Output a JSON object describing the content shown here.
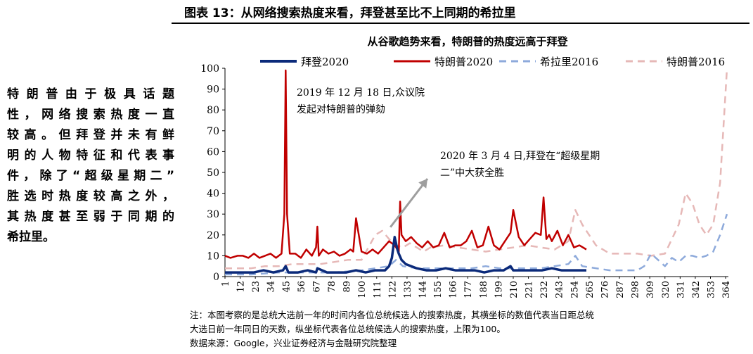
{
  "header": {
    "title": "图表 13：从网络搜索热度来看，拜登甚至比不上同期的希拉里"
  },
  "side_text": {
    "lines": [
      "特朗普由于极具话题",
      "性，网络搜索热度一直",
      "较高。但拜登并未有鲜",
      "明的人物特征和代表事",
      "件，除了“超级星期二”",
      "胜选时热度较高之外，",
      "其热度甚至弱于同期的",
      "希拉里。"
    ]
  },
  "note": {
    "line1": "注：本图考察的是总统大选前一年的时间内各位总统候选人的搜索热度，其横坐标的数值代表当日距总统",
    "line2": "大选日前一年同日的天数，纵坐标代表各位总统候选人的搜索热度，上限为100。",
    "source": "数据来源：Google，兴业证券经济与金融研究院整理"
  },
  "chart_data": {
    "type": "line",
    "title": "从谷歌趋势来看，特朗普的热度远高于拜登",
    "xlabel": "",
    "ylabel": "",
    "xlim": [
      1,
      366
    ],
    "ylim": [
      0,
      100
    ],
    "yticks": [
      0,
      10,
      20,
      30,
      40,
      50,
      60,
      70,
      80,
      90,
      100
    ],
    "xticks": [
      1,
      12,
      23,
      34,
      45,
      56,
      67,
      78,
      89,
      100,
      111,
      122,
      133,
      144,
      155,
      166,
      177,
      188,
      199,
      210,
      221,
      232,
      243,
      254,
      265,
      276,
      287,
      298,
      309,
      320,
      331,
      342,
      353,
      364
    ],
    "legend_position": "top",
    "grid": false,
    "colors": {
      "biden2020": "#0b2a7a",
      "trump2020": "#c00000",
      "hillary2016": "#8eaadb",
      "trump2016": "#e6b8b7"
    },
    "series": [
      {
        "name": "拜登2020",
        "style": "solid",
        "x": [
          1,
          8,
          15,
          22,
          29,
          36,
          43,
          45,
          47,
          54,
          61,
          67,
          68,
          75,
          82,
          89,
          96,
          103,
          110,
          117,
          120,
          122,
          124,
          126,
          127,
          129,
          132,
          136,
          140,
          147,
          154,
          161,
          168,
          175,
          182,
          189,
          196,
          203,
          208,
          210,
          217,
          224,
          231,
          238,
          245,
          252,
          259,
          263
        ],
        "values": [
          2,
          2,
          2,
          2,
          3,
          2,
          3,
          5,
          2,
          2,
          3,
          2,
          4,
          2,
          2,
          2,
          3,
          2,
          3,
          3,
          5,
          9,
          19,
          13,
          11,
          8,
          6,
          5,
          4,
          3,
          3,
          4,
          3,
          3,
          3,
          2,
          3,
          3,
          5,
          3,
          3,
          3,
          3,
          4,
          3,
          3,
          3,
          3
        ]
      },
      {
        "name": "特朗普2020",
        "style": "solid",
        "x": [
          1,
          5,
          10,
          14,
          18,
          22,
          26,
          30,
          34,
          38,
          42,
          44,
          45,
          46,
          48,
          52,
          56,
          60,
          64,
          67,
          68,
          69,
          72,
          76,
          80,
          84,
          88,
          92,
          94,
          96,
          100,
          104,
          108,
          112,
          116,
          120,
          124,
          127,
          128,
          129,
          132,
          136,
          140,
          144,
          148,
          152,
          156,
          160,
          164,
          168,
          172,
          176,
          180,
          184,
          188,
          192,
          196,
          200,
          204,
          208,
          210,
          214,
          218,
          222,
          226,
          230,
          232,
          234,
          236,
          238,
          242,
          246,
          250,
          254,
          258,
          263
        ],
        "values": [
          10,
          9,
          10,
          10,
          9,
          11,
          9,
          10,
          11,
          9,
          11,
          30,
          99,
          30,
          11,
          11,
          9,
          13,
          10,
          14,
          24,
          10,
          13,
          11,
          12,
          10,
          11,
          13,
          12,
          28,
          12,
          11,
          13,
          11,
          14,
          17,
          15,
          12,
          36,
          20,
          17,
          19,
          16,
          14,
          17,
          14,
          15,
          21,
          14,
          15,
          15,
          17,
          22,
          14,
          15,
          24,
          15,
          13,
          17,
          21,
          32,
          19,
          15,
          18,
          21,
          20,
          38,
          18,
          20,
          17,
          22,
          15,
          20,
          14,
          15,
          13
        ]
      },
      {
        "name": "希拉里2016",
        "style": "dashed",
        "x": [
          1,
          20,
          40,
          60,
          80,
          100,
          110,
          120,
          125,
          130,
          140,
          150,
          160,
          170,
          180,
          190,
          200,
          210,
          220,
          230,
          240,
          250,
          255,
          260,
          270,
          280,
          290,
          300,
          305,
          310,
          315,
          320,
          325,
          330,
          335,
          340,
          345,
          350,
          355,
          360,
          365
        ],
        "values": [
          1,
          1,
          2,
          2,
          2,
          3,
          4,
          5,
          8,
          5,
          4,
          4,
          4,
          4,
          4,
          5,
          4,
          4,
          4,
          4,
          5,
          6,
          10,
          5,
          4,
          3,
          3,
          3,
          5,
          11,
          8,
          5,
          9,
          7,
          10,
          10,
          9,
          10,
          12,
          20,
          30
        ]
      },
      {
        "name": "特朗普2016",
        "style": "dashed",
        "x": [
          1,
          10,
          20,
          30,
          40,
          50,
          60,
          70,
          80,
          90,
          100,
          110,
          115,
          120,
          125,
          130,
          135,
          140,
          145,
          150,
          160,
          170,
          180,
          190,
          200,
          210,
          220,
          230,
          240,
          250,
          255,
          260,
          265,
          270,
          280,
          290,
          300,
          310,
          320,
          330,
          335,
          340,
          345,
          350,
          355,
          360,
          365
        ],
        "values": [
          4,
          4,
          4,
          5,
          5,
          6,
          6,
          6,
          7,
          8,
          8,
          20,
          22,
          18,
          15,
          14,
          16,
          14,
          12,
          14,
          15,
          14,
          13,
          12,
          13,
          14,
          15,
          14,
          13,
          17,
          32,
          25,
          20,
          15,
          11,
          11,
          11,
          10,
          11,
          25,
          40,
          35,
          25,
          20,
          25,
          45,
          100
        ]
      }
    ],
    "annotations": [
      {
        "text_line1": "2019 年 12 月 18 日,众议院",
        "text_line2": "发起对特朗普的弹劾",
        "x": 45,
        "y": 99
      },
      {
        "text_line1": "2020 年 3 月 4 日,拜登在“超级星期",
        "text_line2": "二”中大获全胜",
        "x": 124,
        "y": 19
      }
    ]
  }
}
